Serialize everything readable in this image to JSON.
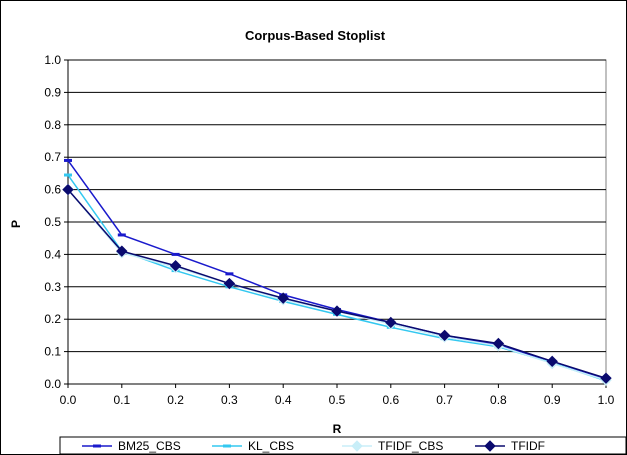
{
  "chart_data": {
    "type": "line",
    "title": "Corpus-Based Stoplist",
    "xlabel": "R",
    "ylabel": "P",
    "x": [
      0.0,
      0.1,
      0.2,
      0.3,
      0.4,
      0.5,
      0.6,
      0.7,
      0.8,
      0.9,
      1.0
    ],
    "x_tick_labels": [
      "0.0",
      "0.1",
      "0.2",
      "0.3",
      "0.4",
      "0.5",
      "0.6",
      "0.7",
      "0.8",
      "0.9",
      "1.0"
    ],
    "y_tick_labels": [
      "0.0",
      "0.1",
      "0.2",
      "0.3",
      "0.4",
      "0.5",
      "0.6",
      "0.7",
      "0.8",
      "0.9",
      "1.0"
    ],
    "xlim": [
      0.0,
      1.0
    ],
    "ylim": [
      0.0,
      1.0
    ],
    "grid": "horizontal",
    "legend_position": "bottom",
    "series": [
      {
        "name": "BM25_CBS",
        "color": "#1a1acc",
        "marker": "dash",
        "values": [
          0.69,
          0.46,
          0.4,
          0.34,
          0.275,
          0.23,
          0.19,
          0.15,
          0.12,
          0.07,
          0.015
        ]
      },
      {
        "name": "KL_CBS",
        "color": "#33c8f0",
        "marker": "dash",
        "values": [
          0.645,
          0.41,
          0.35,
          0.3,
          0.255,
          0.215,
          0.175,
          0.14,
          0.115,
          0.065,
          0.01
        ]
      },
      {
        "name": "TFIDF_CBS",
        "color": "#c8eef8",
        "marker": "diamond",
        "values": [
          0.6,
          0.405,
          0.36,
          0.31,
          0.26,
          0.225,
          0.185,
          0.145,
          0.118,
          0.063,
          0.012
        ]
      },
      {
        "name": "TFIDF",
        "color": "#0a0a6e",
        "marker": "diamond",
        "values": [
          0.6,
          0.41,
          0.365,
          0.31,
          0.265,
          0.225,
          0.19,
          0.15,
          0.125,
          0.07,
          0.018
        ]
      }
    ]
  }
}
